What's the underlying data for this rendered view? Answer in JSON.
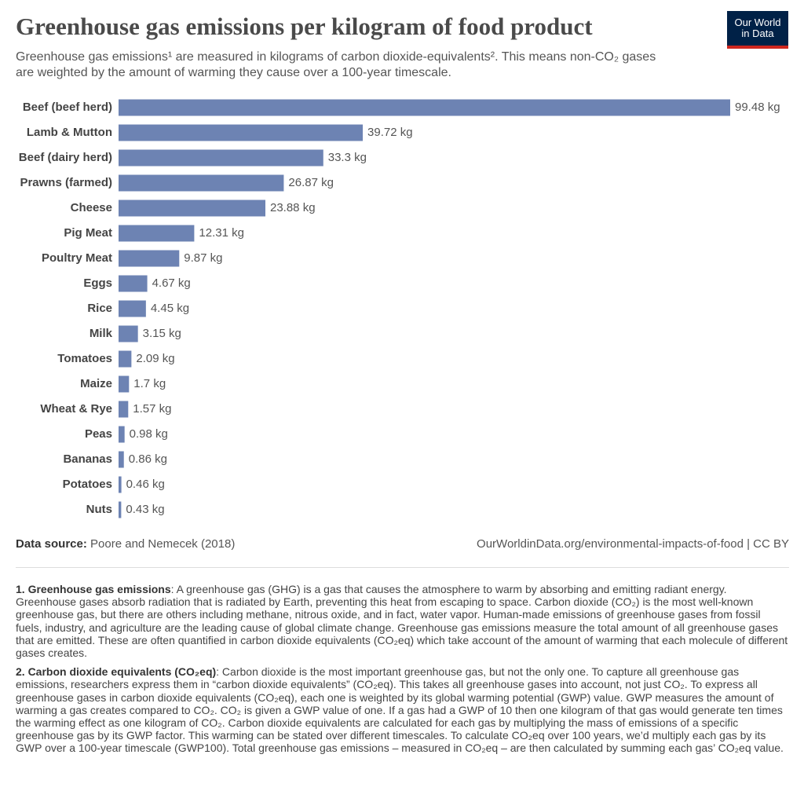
{
  "chart_data": {
    "type": "bar",
    "orientation": "horizontal",
    "title": "Greenhouse gas emissions per kilogram of food product",
    "subtitle": "Greenhouse gas emissions¹ are measured in kilograms of carbon dioxide-equivalents². This means non-CO₂ gases are weighted by the amount of warming they cause over a 100-year timescale.",
    "logo": "Our World in Data",
    "color": "#6d83b3",
    "categories": [
      "Beef (beef herd)",
      "Lamb & Mutton",
      "Beef (dairy herd)",
      "Prawns (farmed)",
      "Cheese",
      "Pig Meat",
      "Poultry Meat",
      "Eggs",
      "Rice",
      "Milk",
      "Tomatoes",
      "Maize",
      "Wheat & Rye",
      "Peas",
      "Bananas",
      "Potatoes",
      "Nuts"
    ],
    "values": [
      99.48,
      39.72,
      33.3,
      26.87,
      23.88,
      12.31,
      9.87,
      4.67,
      4.45,
      3.15,
      2.09,
      1.7,
      1.57,
      0.98,
      0.86,
      0.46,
      0.43
    ],
    "value_labels": [
      "99.48 kg",
      "39.72 kg",
      "33.3 kg",
      "26.87 kg",
      "23.88 kg",
      "12.31 kg",
      "9.87 kg",
      "4.67 kg",
      "4.45 kg",
      "3.15 kg",
      "2.09 kg",
      "1.7 kg",
      "1.57 kg",
      "0.98 kg",
      "0.86 kg",
      "0.46 kg",
      "0.43 kg"
    ],
    "source_label": "Data source:",
    "source": "Poore and Nemecek (2018)",
    "url": "OurWorldinData.org/environmental-impacts-of-food | CC BY",
    "notes": [
      {
        "title": "1. Greenhouse gas emissions",
        "text": ": A greenhouse gas (GHG) is a gas that causes the atmosphere to warm by absorbing and emitting radiant energy. Greenhouse gases absorb radiation that is radiated by Earth, preventing this heat from escaping to space. Carbon dioxide (CO₂) is the most well-known greenhouse gas, but there are others including methane, nitrous oxide, and in fact, water vapor. Human-made emissions of greenhouse gases from fossil fuels, industry, and agriculture are the leading cause of global climate change. Greenhouse gas emissions measure the total amount of all greenhouse gases that are emitted. These are often quantified in carbon dioxide equivalents (CO₂eq) which take account of the amount of warming that each molecule of different gases creates."
      },
      {
        "title": "2. Carbon dioxide equivalents (CO₂eq)",
        "text": ": Carbon dioxide is the most important greenhouse gas, but not the only one. To capture all greenhouse gas emissions, researchers express them in “carbon dioxide equivalents” (CO₂eq). This takes all greenhouse gases into account, not just CO₂. To express all greenhouse gases in carbon dioxide equivalents (CO₂eq), each one is weighted by its global warming potential (GWP) value. GWP measures the amount of warming a gas creates compared to CO₂. CO₂ is given a GWP value of one. If a gas had a GWP of 10 then one kilogram of that gas would generate ten times the warming effect as one kilogram of CO₂. Carbon dioxide equivalents are calculated for each gas by multiplying the mass of emissions of a specific greenhouse gas by its GWP factor. This warming can be stated over different timescales. To calculate CO₂eq over 100 years, we’d multiply each gas by its GWP over a 100-year timescale (GWP100). Total greenhouse gas emissions – measured in CO₂eq – are then calculated by summing each gas’ CO₂eq value."
      }
    ]
  }
}
